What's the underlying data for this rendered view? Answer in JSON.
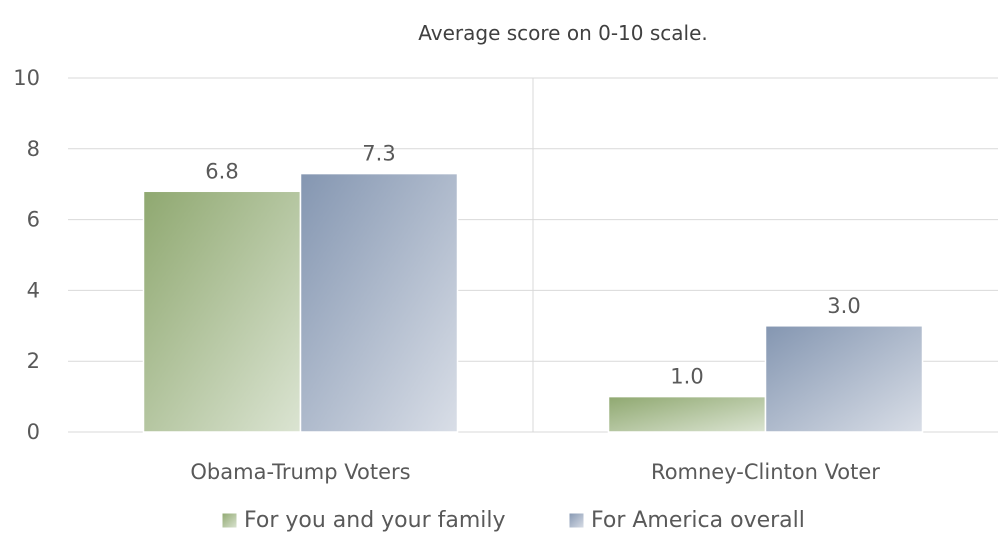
{
  "chart_data": {
    "type": "bar",
    "title": "Average score on 0-10 scale.",
    "categories": [
      "Obama-Trump Voters",
      "Romney-Clinton Voter"
    ],
    "series": [
      {
        "name": "For you and your family",
        "values": [
          6.8,
          1.0
        ],
        "labels": [
          "6.8",
          "1.0"
        ],
        "color": "#9bb07c"
      },
      {
        "name": "For America overall",
        "values": [
          7.3,
          3.0
        ],
        "labels": [
          "7.3",
          "3.0"
        ],
        "color": "#8c9db7"
      }
    ],
    "ylim": [
      0,
      10
    ],
    "yticks": [
      "0",
      "2",
      "4",
      "6",
      "8",
      "10"
    ],
    "grid": true,
    "legend_position": "bottom"
  }
}
